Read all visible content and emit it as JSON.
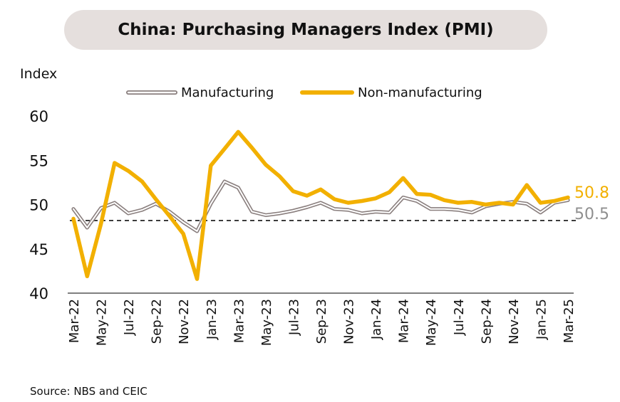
{
  "title": "China: Purchasing Managers Index (PMI)",
  "source": "Source: NBS and CEIC",
  "chart_data": {
    "type": "line",
    "title": "China: Purchasing Managers Index (PMI)",
    "ylabel": "Index",
    "xlabel": "",
    "ylim": [
      40,
      60
    ],
    "yticks": [
      40,
      45,
      50,
      55,
      60
    ],
    "grid": false,
    "legend_position": "top",
    "reference_line": {
      "y": 48.2,
      "style": "dashed"
    },
    "categories": [
      "Mar-22",
      "Apr-22",
      "May-22",
      "Jun-22",
      "Jul-22",
      "Aug-22",
      "Sep-22",
      "Oct-22",
      "Nov-22",
      "Dec-22",
      "Jan-23",
      "Feb-23",
      "Mar-23",
      "Apr-23",
      "May-23",
      "Jun-23",
      "Jul-23",
      "Aug-23",
      "Sep-23",
      "Oct-23",
      "Nov-23",
      "Dec-23",
      "Jan-24",
      "Feb-24",
      "Mar-24",
      "Apr-24",
      "May-24",
      "Jun-24",
      "Jul-24",
      "Aug-24",
      "Sep-24",
      "Oct-24",
      "Nov-24",
      "Dec-24",
      "Jan-25",
      "Feb-25",
      "Mar-25"
    ],
    "tick_labels": [
      "Mar-22",
      "May-22",
      "Jul-22",
      "Sep-22",
      "Nov-22",
      "Jan-23",
      "Mar-23",
      "May-23",
      "Jul-23",
      "Sep-23",
      "Nov-23",
      "Jan-24",
      "Mar-24",
      "May-24",
      "Jul-24",
      "Sep-24",
      "Nov-24",
      "Jan-25",
      "Mar-25"
    ],
    "series": [
      {
        "name": "Manufacturing",
        "color": "#8a7f7e",
        "end_label": "50.5",
        "values": [
          49.5,
          47.4,
          49.6,
          50.2,
          49.0,
          49.4,
          50.1,
          49.2,
          48.0,
          47.0,
          50.1,
          52.6,
          51.9,
          49.2,
          48.8,
          49.0,
          49.3,
          49.7,
          50.2,
          49.5,
          49.4,
          49.0,
          49.2,
          49.1,
          50.8,
          50.4,
          49.5,
          49.5,
          49.4,
          49.1,
          49.8,
          50.1,
          50.3,
          50.1,
          49.1,
          50.2,
          50.5
        ]
      },
      {
        "name": "Non-manufacturing",
        "color": "#f2b000",
        "end_label": "50.8",
        "values": [
          48.4,
          41.9,
          47.8,
          54.7,
          53.8,
          52.6,
          50.6,
          48.7,
          46.7,
          41.6,
          54.4,
          56.3,
          58.2,
          56.4,
          54.5,
          53.2,
          51.5,
          51.0,
          51.7,
          50.6,
          50.2,
          50.4,
          50.7,
          51.4,
          53.0,
          51.2,
          51.1,
          50.5,
          50.2,
          50.3,
          50.0,
          50.2,
          50.0,
          52.2,
          50.2,
          50.4,
          50.8
        ]
      }
    ]
  }
}
